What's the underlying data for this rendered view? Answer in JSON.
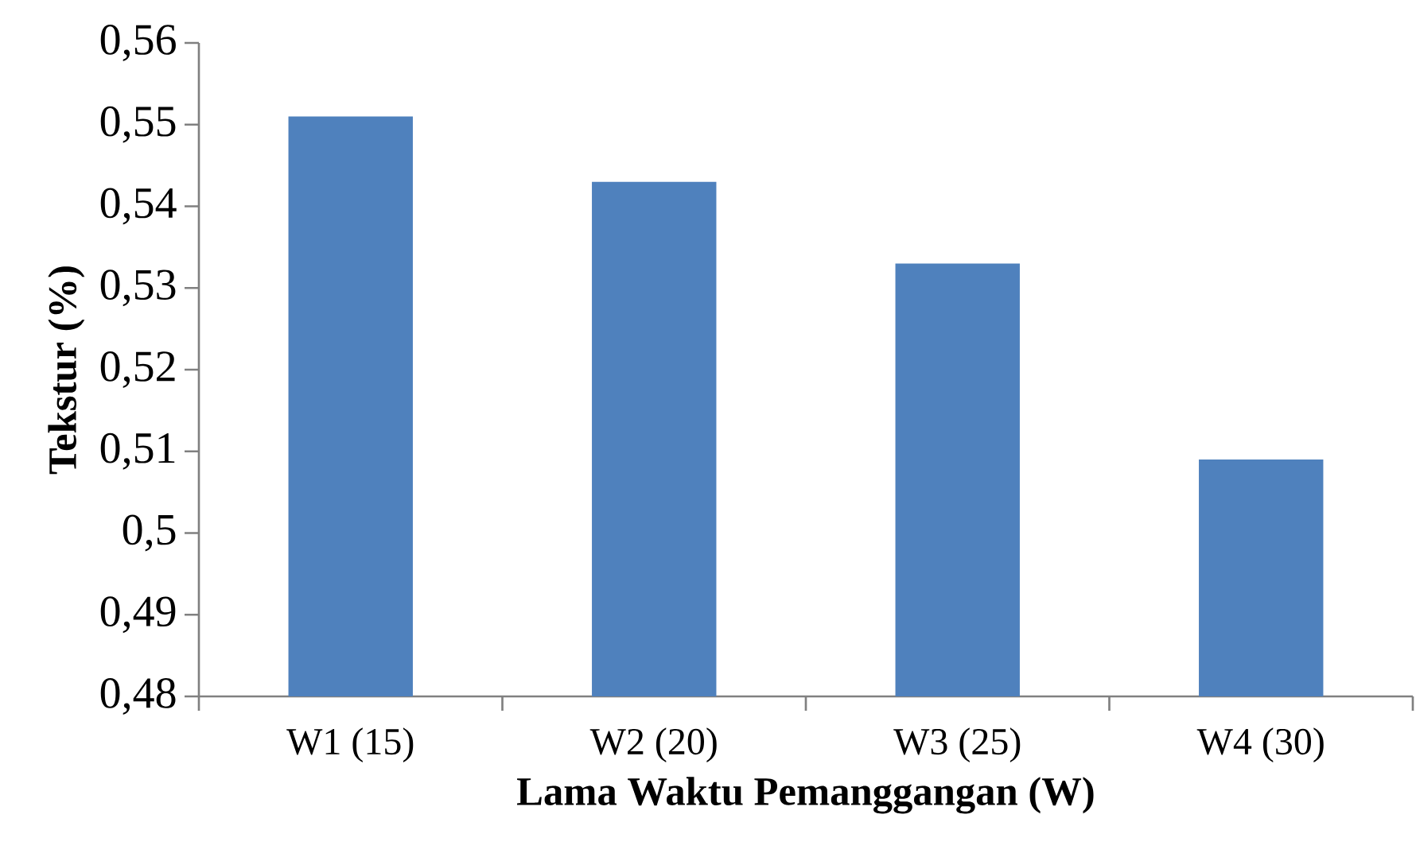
{
  "chart_data": {
    "type": "bar",
    "xlabel": "Lama Waktu Pemanggangan (W)",
    "ylabel": "Tekstur (%)",
    "categories": [
      "W1 (15)",
      "W2 (20)",
      "W3 (25)",
      "W4 (30)"
    ],
    "values": [
      0.551,
      0.543,
      0.533,
      0.509
    ],
    "color": "#4f81bd",
    "ylim": [
      0.48,
      0.56
    ],
    "yticks": [
      {
        "value": 0.48,
        "label": "0,48"
      },
      {
        "value": 0.49,
        "label": "0,49"
      },
      {
        "value": 0.5,
        "label": "0,5"
      },
      {
        "value": 0.51,
        "label": "0,51"
      },
      {
        "value": 0.52,
        "label": "0,52"
      },
      {
        "value": 0.53,
        "label": "0,53"
      },
      {
        "value": 0.54,
        "label": "0,54"
      },
      {
        "value": 0.55,
        "label": "0,55"
      },
      {
        "value": 0.56,
        "label": "0,56"
      }
    ],
    "grid": false
  }
}
